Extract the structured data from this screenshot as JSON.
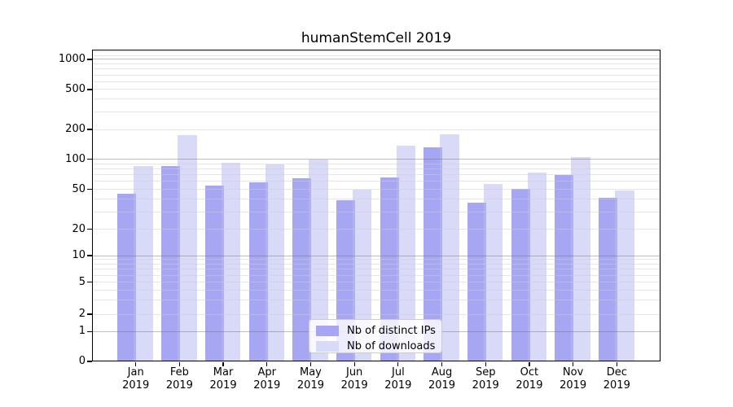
{
  "chart_data": {
    "type": "bar",
    "title": "humanStemCell 2019",
    "year_label": "2019",
    "categories": [
      "Jan",
      "Feb",
      "Mar",
      "Apr",
      "May",
      "Jun",
      "Jul",
      "Aug",
      "Sep",
      "Oct",
      "Nov",
      "Dec"
    ],
    "series": [
      {
        "name": "Nb of distinct IPs",
        "color": "#a6a6f2",
        "values": [
          45,
          85,
          55,
          59,
          64,
          39,
          66,
          132,
          37,
          51,
          69,
          41
        ]
      },
      {
        "name": "Nb of downloads",
        "color": "#d9d9f8",
        "values": [
          85,
          175,
          92,
          89,
          100,
          50,
          138,
          180,
          57,
          73,
          105,
          49
        ]
      }
    ],
    "yticks": [
      0,
      1,
      2,
      5,
      10,
      20,
      50,
      100,
      200,
      500,
      1000
    ],
    "yscale": "symlog",
    "ylim": [
      0,
      1259
    ],
    "grid": true,
    "legend_position": "lower center"
  }
}
